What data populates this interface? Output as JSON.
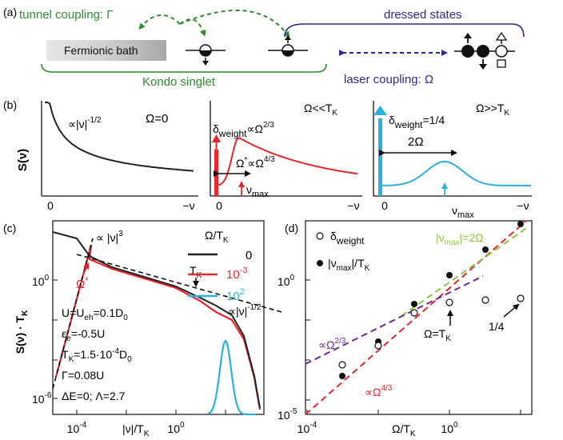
{
  "panel_a": {
    "label": "(a)",
    "tunnel_coupling": "tunnel coupling: Γ",
    "dressed_states": "dressed states",
    "bath": "Fermionic bath",
    "kondo": "Kondo singlet",
    "laser": "laser coupling: Ω"
  },
  "panel_b": {
    "label": "(b)",
    "ylabel": "S(ν)",
    "sub1": {
      "annot": "∝|ν|",
      "annot_exp": "-1/2",
      "omega": "Ω=0",
      "ticks": [
        "0",
        "−ν"
      ]
    },
    "sub2": {
      "title": "Ω<<T",
      "title_sub": "K",
      "delta": "δ",
      "delta_sub": "weight",
      "delta_rel": "∝Ω",
      "delta_exp": "2/3",
      "omega_star": "Ω",
      "omega_star_sup": "*",
      "omega_rel": "∝Ω",
      "omega_exp": "4/3",
      "numax": "ν",
      "numax_sub": "max",
      "ticks": [
        "0",
        "−ν"
      ]
    },
    "sub3": {
      "title": "Ω>>T",
      "title_sub": "K",
      "delta": "δ",
      "delta_sub": "weight",
      "delta_val": "=1/4",
      "two_omega": "2Ω",
      "numax": "ν",
      "numax_sub": "max",
      "ticks": [
        "0",
        "−ν"
      ]
    }
  },
  "panel_c": {
    "label": "(c)",
    "ylabel": "S(ν) · T",
    "ylabel_sub": "K",
    "xlabel": "|ν|/T",
    "xlabel_sub": "K",
    "xticks": [
      {
        "base": "10",
        "exp": "-4"
      },
      {
        "base": "10",
        "exp": "0"
      }
    ],
    "yticks": [
      {
        "base": "10",
        "exp": "0"
      },
      {
        "base": "10",
        "exp": "-6"
      }
    ],
    "legend_title": "Ω/T",
    "legend_title_sub": "K",
    "legend": [
      {
        "label": "0",
        "color": "#222222"
      },
      {
        "label": "10",
        "exp": "-3",
        "color": "#e8262b"
      },
      {
        "label": "10",
        "exp": "2",
        "color": "#2bb0e0"
      }
    ],
    "nu3": "∝ |ν|",
    "nu3_exp": "3",
    "nu12": "∝|ν|",
    "nu12_exp": "-1/2",
    "tk": "T",
    "tk_sub": "K",
    "omega_star": "Ω",
    "omega_star_sup": "*",
    "params": [
      {
        "a": "U=U",
        "b": "eh",
        "c": "=0.1D",
        "d": "0",
        "e": ""
      },
      {
        "a": "ε",
        "b": "e",
        "c": "=-0.5U",
        "d": "",
        "e": ""
      },
      {
        "a": "T",
        "b": "K",
        "c": "=1.5·10",
        "sup": "-4",
        "d": "",
        "e": "D",
        "f": "0"
      },
      {
        "a": "Γ=0.08U",
        "b": "",
        "c": "",
        "d": "",
        "e": ""
      },
      {
        "a": "ΔE=0;  Λ=2.7",
        "b": "",
        "c": "",
        "d": "",
        "e": ""
      }
    ]
  },
  "panel_d": {
    "label": "(d)",
    "xlabel": "Ω/T",
    "xlabel_sub": "K",
    "xticks": [
      {
        "base": "10",
        "exp": "-4"
      },
      {
        "base": "10",
        "exp": "0"
      }
    ],
    "yticks": [
      {
        "base": "10",
        "exp": "0"
      },
      {
        "base": "10",
        "exp": "-5"
      }
    ],
    "legend_open": "δ",
    "legend_open_sub": "weight",
    "legend_filled": "|ν",
    "legend_filled_sub": "max",
    "legend_filled_tail": "|/T",
    "legend_filled_sub2": "K",
    "numax_rel": "|ν",
    "numax_rel_sub": "max",
    "numax_rel_tail": "|=2Ω",
    "omega23": "∝Ω",
    "omega23_exp": "2/3",
    "omega43": "∝Ω",
    "omega43_exp": "4/3",
    "omega_tk": "Ω=T",
    "omega_tk_sub": "K",
    "quarter": "1/4"
  },
  "colors": {
    "black": "#222222",
    "red": "#e8262b",
    "cyan": "#2bb0e0",
    "green": "#2e8b2e",
    "navy": "#2a2a8f",
    "purple": "#6a2c91",
    "lightgreen": "#8cc63f"
  }
}
